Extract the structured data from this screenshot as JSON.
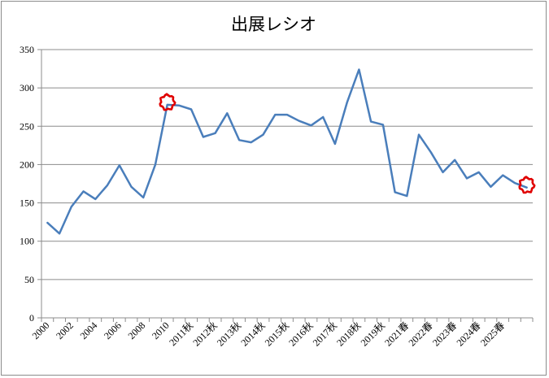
{
  "chart_data": {
    "type": "line",
    "title": "出展レシオ",
    "xlabel": "",
    "ylabel": "",
    "ylim": [
      0,
      350
    ],
    "yticks": [
      0,
      50,
      100,
      150,
      200,
      250,
      300,
      350
    ],
    "grid": true,
    "legend": "none",
    "x_tick_labels": [
      "2000",
      "2002",
      "2004",
      "2006",
      "2008",
      "2010",
      "2011秋",
      "2012秋",
      "2013秋",
      "2014秋",
      "2015秋",
      "2016秋",
      "2017秋",
      "2018秋",
      "2019秋",
      "2021春",
      "2022春",
      "2023春",
      "2024春",
      "2025春"
    ],
    "series": [
      {
        "color": "#4a7ebb",
        "values": [
          124,
          110,
          145,
          165,
          155,
          173,
          199,
          171,
          157,
          200,
          278,
          277,
          272,
          236,
          241,
          267,
          232,
          229,
          239,
          265,
          265,
          257,
          251,
          262,
          227,
          281,
          324,
          256,
          252,
          164,
          159,
          239,
          216,
          190,
          206,
          182,
          190,
          171,
          186,
          176,
          170
        ]
      }
    ],
    "annotations": [
      {
        "shape": "hand-drawn-circle",
        "color": "#e00000",
        "at_index": 10
      },
      {
        "shape": "hand-drawn-circle",
        "color": "#e00000",
        "at_index": 40
      }
    ]
  }
}
